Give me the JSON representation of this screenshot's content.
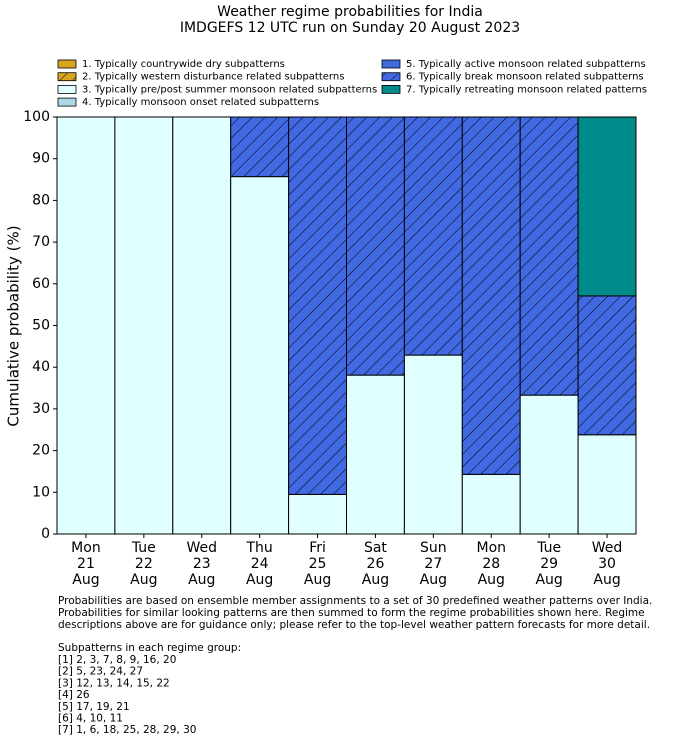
{
  "chart_data": {
    "type": "bar",
    "stacked": true,
    "title": "Weather regime probabilities for India",
    "subtitle": "IMDGEFS 12 UTC run on Sunday 20 August 2023",
    "y_label": "Cumulative probability (%)",
    "categories": [
      "Mon\n21\nAug",
      "Tue\n22\nAug",
      "Wed\n23\nAug",
      "Thu\n24\nAug",
      "Fri\n25\nAug",
      "Sat\n26\nAug",
      "Sun\n27\nAug",
      "Mon\n28\nAug",
      "Tue\n29\nAug",
      "Wed\n30\nAug"
    ],
    "series": [
      {
        "name": "1. Typically countrywide dry subpatterns",
        "color": "#daa520",
        "hatch": false,
        "values": [
          0,
          0,
          0,
          0,
          0,
          0,
          0,
          0,
          0,
          0
        ]
      },
      {
        "name": "2. Typically western disturbance related subpatterns",
        "color": "#daa520",
        "hatch": true,
        "values": [
          0,
          0,
          0,
          0,
          0,
          0,
          0,
          0,
          0,
          0
        ]
      },
      {
        "name": "3. Typically pre/post summer monsoon related subpatterns",
        "color": "#e0ffff",
        "hatch": false,
        "values": [
          100,
          100,
          100,
          85.7,
          9.5,
          38.1,
          42.9,
          14.3,
          33.3,
          23.8
        ]
      },
      {
        "name": "4. Typically monsoon onset related subpatterns",
        "color": "#add8e6",
        "hatch": false,
        "values": [
          0,
          0,
          0,
          0,
          0,
          0,
          0,
          0,
          0,
          0
        ]
      },
      {
        "name": "5. Typically active monsoon related subpatterns",
        "color": "#4169e1",
        "hatch": false,
        "values": [
          0,
          0,
          0,
          0,
          0,
          0,
          0,
          0,
          0,
          0
        ]
      },
      {
        "name": "6. Typically break monsoon related subpatterns",
        "color": "#4169e1",
        "hatch": true,
        "values": [
          0,
          0,
          0,
          14.3,
          90.5,
          61.9,
          57.1,
          85.7,
          66.7,
          33.3
        ]
      },
      {
        "name": "7. Typically retreating monsoon related patterns",
        "color": "#008b8b",
        "hatch": false,
        "values": [
          0,
          0,
          0,
          0,
          0,
          0,
          0,
          0,
          0,
          42.9
        ]
      }
    ],
    "ylim": [
      0,
      100
    ],
    "yticks": [
      0,
      10,
      20,
      30,
      40,
      50,
      60,
      70,
      80,
      90,
      100
    ],
    "grid": false
  },
  "footer": {
    "notes": [
      "Probabilities are based on ensemble member assignments to a set of 30 predefined weather patterns over India.",
      "Probabilities for similar looking patterns are then summed to form the regime probabilities shown here. Regime",
      "descriptions above are for guidance only; please refer to the top-level weather pattern forecasts for more detail."
    ],
    "subpatterns_title": "Subpatterns in each regime group:",
    "subpatterns": [
      "[1] 2, 3, 7, 8, 9, 16, 20",
      "[2] 5, 23, 24, 27",
      "[3] 12, 13, 14, 15, 22",
      "[4] 26",
      "[5] 17, 19, 21",
      "[6] 4, 10, 11",
      "[7] 1, 6, 18, 25, 28, 29, 30"
    ]
  }
}
